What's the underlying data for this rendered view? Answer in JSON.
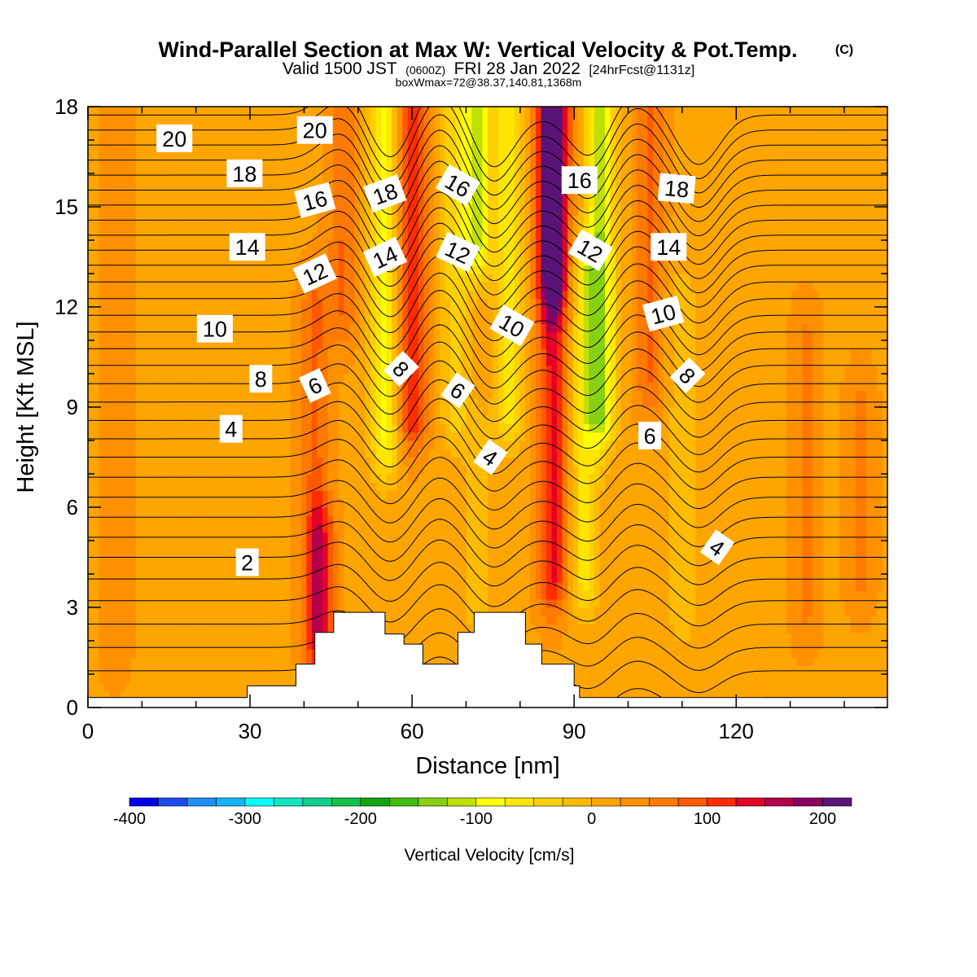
{
  "titles": {
    "main": "Wind-Parallel Section at Max W: Vertical Velocity & Pot.Temp.",
    "copyright": "(C)",
    "valid_prefix": "Valid 1500 JST",
    "valid_utc": "(0600Z)",
    "valid_date": "FRI 28 Jan 2022",
    "forecast": "[24hrFcst@1131z]",
    "box_max": "boxWmax=72@38.37,140.81,1368m"
  },
  "chart_data": {
    "type": "heatmap",
    "xlabel": "Distance [nm]",
    "ylabel": "Height [Kft MSL]",
    "xlim": [
      0,
      148
    ],
    "ylim": [
      0,
      18
    ],
    "xticks": [
      0,
      30,
      60,
      90,
      120
    ],
    "xtick_labels": [
      "0",
      "30",
      "60",
      "90",
      "120"
    ],
    "yticks": [
      0,
      3,
      6,
      9,
      12,
      15,
      18
    ],
    "ytick_labels": [
      "0",
      "3",
      "6",
      "9",
      "12",
      "15",
      "18"
    ],
    "background_velocity_cms": 20,
    "velocity_features": [
      {
        "x": 5,
        "h0": 2,
        "h1": 18,
        "w": 30
      },
      {
        "x": 42,
        "h0": 2,
        "h1": 12,
        "w": 60
      },
      {
        "x": 43,
        "h0": 2.5,
        "h1": 5,
        "w": 85
      },
      {
        "x": 47,
        "h0": 12,
        "h1": 18,
        "w": 55
      },
      {
        "x": 55,
        "h0": 8,
        "h1": 18,
        "w": -100
      },
      {
        "x": 60,
        "h0": 9,
        "h1": 18,
        "w": 110
      },
      {
        "x": 68,
        "h0": 9,
        "h1": 18,
        "w": -60
      },
      {
        "x": 72,
        "h0": 3,
        "h1": 8,
        "w": -30
      },
      {
        "x": 72,
        "h0": 14,
        "h1": 18,
        "w": -130
      },
      {
        "x": 78,
        "h0": 9,
        "h1": 18,
        "w": -90
      },
      {
        "x": 86,
        "h0": 4,
        "h1": 18,
        "w": 110
      },
      {
        "x": 86,
        "h0": 13,
        "h1": 18,
        "w": 170
      },
      {
        "x": 92,
        "h0": 4,
        "h1": 13,
        "w": -80
      },
      {
        "x": 95,
        "h0": 9,
        "h1": 18,
        "w": -140
      },
      {
        "x": 104,
        "h0": 10,
        "h1": 18,
        "w": 60
      },
      {
        "x": 110,
        "h0": 3,
        "h1": 12,
        "w": -40
      },
      {
        "x": 133,
        "h0": 3,
        "h1": 11,
        "w": 35
      },
      {
        "x": 143,
        "h0": 4,
        "h1": 9,
        "w": 35
      }
    ],
    "terrain_steps": [
      [
        0,
        0.3
      ],
      [
        29.5,
        0.65
      ],
      [
        38.5,
        1.3
      ],
      [
        42,
        2.25
      ],
      [
        45.5,
        2.85
      ],
      [
        55,
        2.2
      ],
      [
        58.5,
        1.9
      ],
      [
        62,
        1.3
      ],
      [
        68.5,
        2.25
      ],
      [
        71.5,
        2.85
      ],
      [
        81,
        1.9
      ],
      [
        84,
        1.3
      ],
      [
        90,
        0.65
      ],
      [
        91,
        0.3
      ],
      [
        148,
        0.3
      ]
    ],
    "theta_contours": {
      "start_kft": [
        0.3,
        1.1,
        1.8,
        2.5,
        3.2,
        3.85,
        4.5,
        5.1,
        5.7,
        6.3,
        6.9,
        7.5,
        8.05,
        8.6,
        9.15,
        9.7,
        10.25,
        10.75,
        11.25,
        11.75,
        12.25,
        12.75,
        13.25,
        13.7,
        14.15,
        14.6,
        15.05,
        15.5,
        15.95,
        16.4,
        16.85,
        17.3,
        17.75
      ],
      "wave_centers_nm": [
        47,
        56,
        65,
        75,
        93,
        101,
        113
      ],
      "wave_amplitudes_kft": [
        0.9,
        -1.4,
        1.1,
        -1.6,
        -1.3,
        0.8,
        -1.5
      ],
      "wave_width_nm": 5.5
    },
    "contour_labels": [
      {
        "text": "20",
        "x": 16,
        "y": 17.05,
        "angle": 0
      },
      {
        "text": "20",
        "x": 42,
        "y": 17.3,
        "angle": 0
      },
      {
        "text": "18",
        "x": 29,
        "y": 16.0,
        "angle": 0
      },
      {
        "text": "18",
        "x": 55,
        "y": 15.4,
        "angle": -20
      },
      {
        "text": "18",
        "x": 109,
        "y": 15.55,
        "angle": 5
      },
      {
        "text": "16",
        "x": 42,
        "y": 15.2,
        "angle": -15
      },
      {
        "text": "16",
        "x": 68.5,
        "y": 15.65,
        "angle": 30
      },
      {
        "text": "16",
        "x": 91,
        "y": 15.8,
        "angle": 0
      },
      {
        "text": "14",
        "x": 29.5,
        "y": 13.8,
        "angle": 0
      },
      {
        "text": "14",
        "x": 55,
        "y": 13.5,
        "angle": -25
      },
      {
        "text": "14",
        "x": 107.5,
        "y": 13.8,
        "angle": 0
      },
      {
        "text": "12",
        "x": 42,
        "y": 13.0,
        "angle": -25
      },
      {
        "text": "12",
        "x": 68.5,
        "y": 13.65,
        "angle": 25
      },
      {
        "text": "12",
        "x": 93,
        "y": 13.7,
        "angle": 30
      },
      {
        "text": "10",
        "x": 23.5,
        "y": 11.35,
        "angle": 0
      },
      {
        "text": "10",
        "x": 78.5,
        "y": 11.45,
        "angle": 30
      },
      {
        "text": "10",
        "x": 106.5,
        "y": 11.8,
        "angle": -15
      },
      {
        "text": "8",
        "x": 32,
        "y": 9.85,
        "angle": 0
      },
      {
        "text": "8",
        "x": 58,
        "y": 10.15,
        "angle": 45
      },
      {
        "text": "8",
        "x": 111,
        "y": 9.95,
        "angle": 45
      },
      {
        "text": "6",
        "x": 42,
        "y": 9.65,
        "angle": -25
      },
      {
        "text": "6",
        "x": 68.5,
        "y": 9.5,
        "angle": 35
      },
      {
        "text": "6",
        "x": 104,
        "y": 8.15,
        "angle": 0
      },
      {
        "text": "4",
        "x": 26.5,
        "y": 8.35,
        "angle": 0
      },
      {
        "text": "4",
        "x": 74.5,
        "y": 7.5,
        "angle": 35
      },
      {
        "text": "4",
        "x": 116.5,
        "y": 4.8,
        "angle": 35
      },
      {
        "text": "2",
        "x": 29.5,
        "y": 4.35,
        "angle": 0
      }
    ],
    "colorbar": {
      "title": "Vertical Velocity [cm/s]",
      "min": -400,
      "max": 225,
      "step": 25,
      "tick_values": [
        -400,
        -300,
        -200,
        -100,
        0,
        100,
        200
      ],
      "tick_labels": [
        "-400",
        "-300",
        "-200",
        "-100",
        "0",
        "100",
        "200"
      ],
      "colors": [
        "#0000f0",
        "#1e4cf0",
        "#1f8ef2",
        "#16b4f5",
        "#00ffff",
        "#0ee4bf",
        "#10d08c",
        "#14c24a",
        "#10a410",
        "#40bc12",
        "#88d012",
        "#bee006",
        "#ffff00",
        "#ffe600",
        "#ffd000",
        "#ffbb00",
        "#ffa500",
        "#ff9100",
        "#ff7a00",
        "#ff5a00",
        "#ff2d00",
        "#e60028",
        "#b4004c",
        "#8c0064",
        "#5a1478"
      ]
    }
  }
}
